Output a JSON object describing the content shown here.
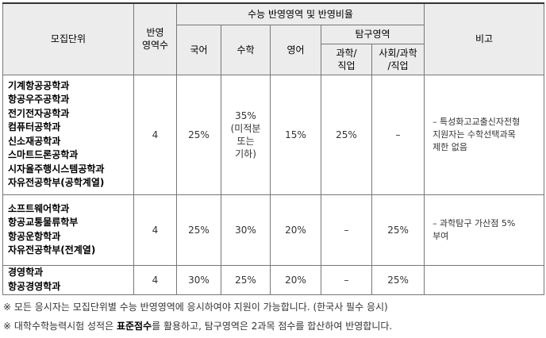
{
  "table": {
    "header": {
      "unit": "모집단위",
      "count": "반영\n영역수",
      "group": "수능 반영영역 및 반영비율",
      "korean": "국어",
      "math": "수학",
      "english": "영어",
      "inquiry": "탐구영역",
      "science": "과학/\n직업",
      "social": "사회/과학\n/직업",
      "remark": "비고"
    },
    "rows": [
      {
        "unit": "기계항공공학과\n항공우주공학과\n전기전자공학과\n컴퓨터공학과\n신소재공학과\n스마트드론공학과\n시자율주행시스템공학과\n자유전공학부(공학계열)",
        "count": "4",
        "korean": "25%",
        "math": "35%\n(미적분\n또는\n기하)",
        "english": "15%",
        "science": "25%",
        "social": "–",
        "remark": "– 특성화고교출신자전형\n지원자는 수학선택과목\n제한 없음"
      },
      {
        "unit": "소프트웨어학과\n항공교통물류학부\n항공운항학과\n자유전공학부(전계열)",
        "count": "4",
        "korean": "25%",
        "math": "30%",
        "english": "20%",
        "science": "–",
        "social": "25%",
        "remark": "– 과학탐구 가산점 5%\n부여"
      },
      {
        "unit": "경영학과\n항공경영학과",
        "count": "4",
        "korean": "30%",
        "math": "25%",
        "english": "20%",
        "science": "–",
        "social": "25%",
        "remark": ""
      }
    ],
    "notes": [
      {
        "text": "※ 모든 응시자는 모집단위별 수능 반영영역에 응시하여야 지원이 가능합니다. (한국사 필수 응시)"
      },
      {
        "before": "※ 대학수학능력시험 성적은 ",
        "bold": "표준점수",
        "after": "를 활용하고, 탐구영역은 2과목 점수를 합산하여 반영합니다."
      }
    ]
  }
}
